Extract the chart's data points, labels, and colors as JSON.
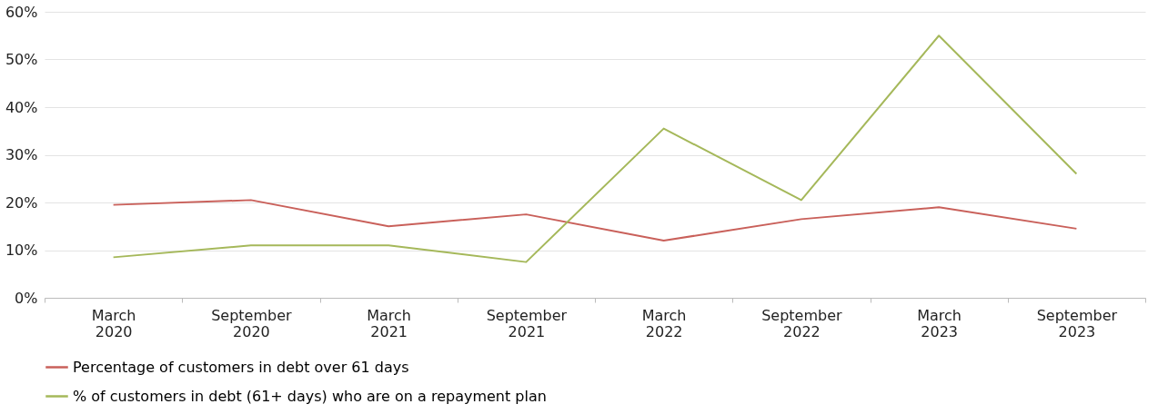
{
  "chart_data": {
    "type": "line",
    "categories": [
      "March 2020",
      "September 2020",
      "March 2021",
      "September 2021",
      "March 2022",
      "September 2022",
      "March 2023",
      "September 2023"
    ],
    "series": [
      {
        "name": "Percentage of customers in debt over 61 days",
        "color": "#c9605a",
        "values": [
          19.5,
          20.5,
          15,
          17.5,
          12,
          16.5,
          19,
          14.5
        ]
      },
      {
        "name": "% of customers in debt (61+ days) who are on a repayment plan",
        "color": "#a5b85a",
        "values": [
          8.5,
          11,
          11,
          7.5,
          35.5,
          20.5,
          55,
          26
        ]
      }
    ],
    "ylim": [
      0,
      60
    ],
    "yticks": [
      {
        "value": 0,
        "label": "0%"
      },
      {
        "value": 10,
        "label": "10%"
      },
      {
        "value": 20,
        "label": "20%"
      },
      {
        "value": 30,
        "label": "30%"
      },
      {
        "value": 40,
        "label": "40%"
      },
      {
        "value": 50,
        "label": "50%"
      },
      {
        "value": 60,
        "label": "60%"
      }
    ],
    "grid": "y",
    "legend": "bottom",
    "marker": "none",
    "line_style": "solid"
  }
}
